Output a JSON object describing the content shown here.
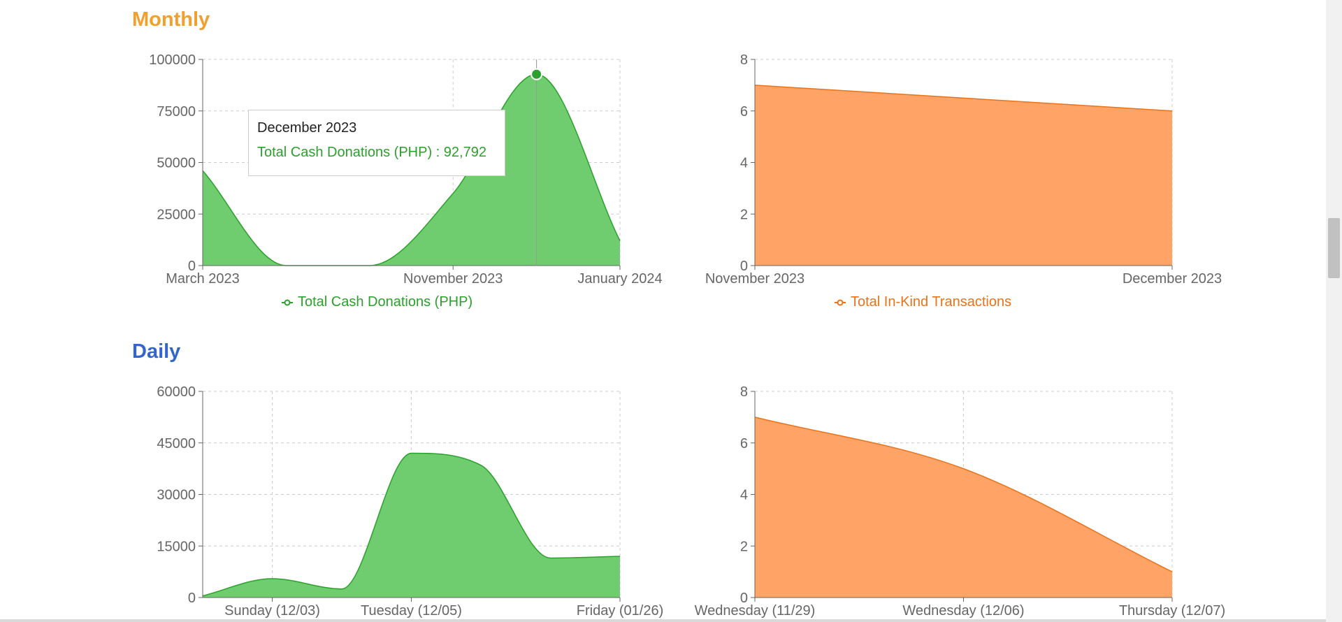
{
  "sections": {
    "monthly": {
      "title": "Monthly",
      "color": "#f0a030"
    },
    "daily": {
      "title": "Daily",
      "color": "#3366cc"
    }
  },
  "colors": {
    "cash_stroke": "#2ca02c",
    "cash_fill": "#6fcd6f",
    "inkind_stroke": "#e8731a",
    "inkind_fill": "#ffa366",
    "grid": "#cccccc",
    "axis": "#666666"
  },
  "tooltip": {
    "label": "December 2023",
    "series": "Total Cash Donations (PHP)",
    "value": "92,792",
    "text": "Total Cash Donations (PHP) : 92,792"
  },
  "chart_data": [
    {
      "id": "monthly-cash",
      "type": "area",
      "x": [
        "March 2023",
        "",
        "",
        "November 2023",
        "December 2023",
        "January 2024"
      ],
      "tick_labels": [
        "March 2023",
        "November 2023",
        "January 2024"
      ],
      "series": [
        {
          "name": "Total Cash Donations (PHP)",
          "values": [
            46000,
            0,
            0,
            35000,
            92792,
            12000
          ]
        }
      ],
      "yticks": [
        "0",
        "25000",
        "50000",
        "75000",
        "100000"
      ],
      "ylim": [
        0,
        100000
      ],
      "grid": true,
      "legend": "bottom-center",
      "active_point": "December 2023"
    },
    {
      "id": "monthly-inkind",
      "type": "area",
      "x": [
        "November 2023",
        "December 2023"
      ],
      "tick_labels": [
        "November 2023",
        "December 2023"
      ],
      "series": [
        {
          "name": "Total In-Kind Transactions",
          "values": [
            7,
            6
          ]
        }
      ],
      "yticks": [
        "0",
        "2",
        "4",
        "6",
        "8"
      ],
      "ylim": [
        0,
        8
      ],
      "grid": true,
      "legend": "bottom-center"
    },
    {
      "id": "daily-cash",
      "type": "area",
      "x": [
        "",
        "Sunday (12/03)",
        "",
        "Tuesday (12/05)",
        "",
        "",
        "Friday (01/26)"
      ],
      "tick_labels": [
        "Sunday (12/03)",
        "Tuesday (12/05)",
        "Friday (01/26)"
      ],
      "series": [
        {
          "name": "",
          "values": [
            500,
            5500,
            2500,
            42000,
            38500,
            11500,
            12000
          ]
        }
      ],
      "yticks": [
        "0",
        "15000",
        "30000",
        "45000",
        "60000"
      ],
      "ylim": [
        0,
        60000
      ],
      "grid": true
    },
    {
      "id": "daily-inkind",
      "type": "area",
      "x": [
        "Wednesday (11/29)",
        "Wednesday (12/06)",
        "Thursday (12/07)"
      ],
      "tick_labels": [
        "Wednesday (11/29)",
        "Wednesday (12/06)",
        "Thursday (12/07)"
      ],
      "series": [
        {
          "name": "",
          "values": [
            7,
            5,
            1
          ]
        }
      ],
      "yticks": [
        "0",
        "2",
        "4",
        "6",
        "8"
      ],
      "ylim": [
        0,
        8
      ],
      "grid": true
    }
  ]
}
